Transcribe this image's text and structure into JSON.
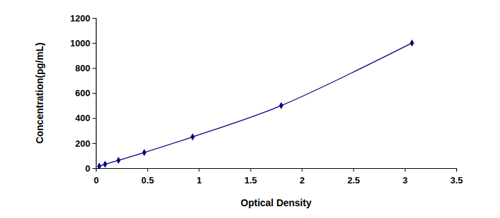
{
  "chart_data": {
    "type": "line",
    "x_label": "Optical Density",
    "y_label": "Concentration(pg/mL)",
    "x": [
      0.033,
      0.09,
      0.22,
      0.47,
      0.94,
      1.8,
      3.07
    ],
    "values": [
      15.6,
      31.2,
      62.5,
      125,
      250,
      500,
      1000
    ],
    "color": "#000080",
    "marker": "diamond",
    "xlim": [
      0,
      3.5
    ],
    "xticks": [
      0,
      0.5,
      1,
      1.5,
      2,
      2.5,
      3,
      3.5
    ],
    "ylim": [
      0,
      1200
    ],
    "yticks": [
      0,
      200,
      400,
      600,
      800,
      1000,
      1200
    ],
    "grid": false
  }
}
